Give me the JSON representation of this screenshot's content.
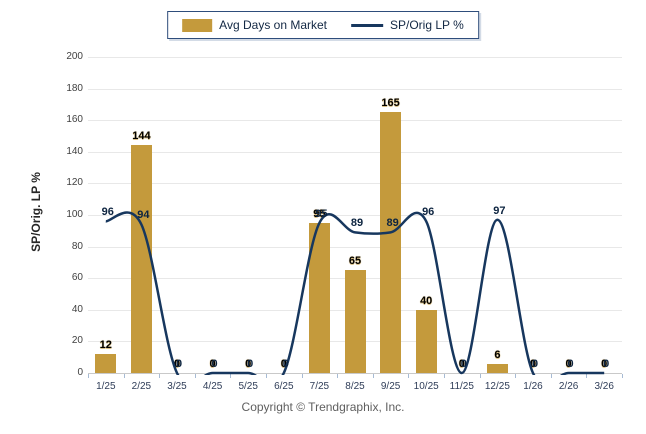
{
  "legend": {
    "bar_label": "Avg Days on Market",
    "line_label": "SP/Orig LP %"
  },
  "y_axis": {
    "title": "SP/Orig. LP %"
  },
  "footer": {
    "copyright": "Copyright © Trendgraphix, Inc."
  },
  "colors": {
    "bar": "#c49a3c",
    "line": "#17375e",
    "gridline": "#e8e8e8",
    "axis": "#c9c9c9"
  },
  "chart_data": {
    "type": "bar",
    "subtype": "bar+line combo",
    "categories": [
      "1/25",
      "2/25",
      "3/25",
      "4/25",
      "5/25",
      "6/25",
      "7/25",
      "8/25",
      "9/25",
      "10/25",
      "11/25",
      "12/25",
      "1/26",
      "2/26",
      "3/26"
    ],
    "series": [
      {
        "name": "Avg Days on Market",
        "type": "bar",
        "values": [
          12,
          144,
          0,
          0,
          0,
          0,
          95,
          65,
          165,
          40,
          0,
          6,
          0,
          0,
          0
        ]
      },
      {
        "name": "SP/Orig LP %",
        "type": "line",
        "values": [
          96,
          94,
          0,
          0,
          0,
          0,
          95,
          89,
          89,
          96,
          0,
          97,
          0,
          0,
          0
        ]
      }
    ],
    "title": "",
    "xlabel": "",
    "ylabel": "SP/Orig. LP %",
    "ylim": [
      0,
      200
    ],
    "ytick_step": 20,
    "grid": true,
    "legend_position": "top",
    "line_smoothing": "spline"
  }
}
